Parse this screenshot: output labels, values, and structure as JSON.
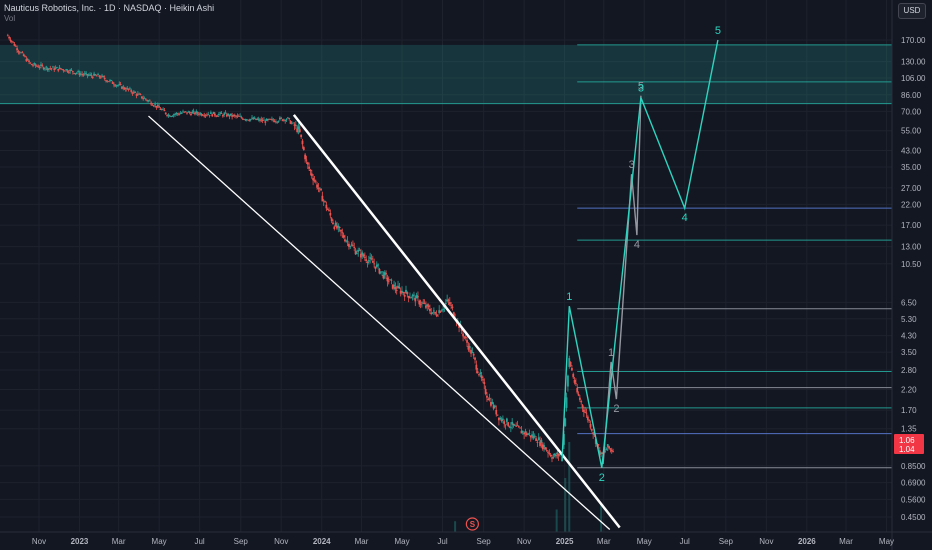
{
  "header": {
    "title": "Nauticus Robotics, Inc. · 1D · NASDAQ · Heikin Ashi",
    "volume_label": "Vol",
    "currency": "USD"
  },
  "chart_data": {
    "type": "line",
    "title": "Nauticus Robotics, Inc. · 1D · NASDAQ · Heikin Ashi",
    "y_scale": "log",
    "ylim": [
      0.4,
      230
    ],
    "y_ticks": [
      0.45,
      0.56,
      0.69,
      0.85,
      1.35,
      1.7,
      2.2,
      2.8,
      3.5,
      4.3,
      5.3,
      6.5,
      10.5,
      13.0,
      17.0,
      22.0,
      27.0,
      35.0,
      43.0,
      55.0,
      70.0,
      86.0,
      106.0,
      130.0,
      170.0
    ],
    "y_tick_labels": [
      "0.4500",
      "0.5600",
      "0.6900",
      "0.8500",
      "1.35",
      "1.70",
      "2.20",
      "2.80",
      "3.50",
      "4.30",
      "5.30",
      "6.50",
      "10.50",
      "13.00",
      "17.00",
      "22.00",
      "27.00",
      "35.00",
      "43.00",
      "55.00",
      "70.00",
      "86.00",
      "106.00",
      "130.00",
      "170.00"
    ],
    "x_ticks": [
      {
        "label": "Nov",
        "date": "2022-11-01"
      },
      {
        "label": "2023",
        "date": "2023-01-01"
      },
      {
        "label": "Mar",
        "date": "2023-03-01"
      },
      {
        "label": "May",
        "date": "2023-05-01"
      },
      {
        "label": "Jul",
        "date": "2023-07-01"
      },
      {
        "label": "Sep",
        "date": "2023-09-01"
      },
      {
        "label": "Nov",
        "date": "2023-11-01"
      },
      {
        "label": "2024",
        "date": "2024-01-01"
      },
      {
        "label": "Mar",
        "date": "2024-03-01"
      },
      {
        "label": "May",
        "date": "2024-05-01"
      },
      {
        "label": "Jul",
        "date": "2024-07-01"
      },
      {
        "label": "Sep",
        "date": "2024-09-01"
      },
      {
        "label": "Nov",
        "date": "2024-11-01"
      },
      {
        "label": "2025",
        "date": "2025-01-01"
      },
      {
        "label": "Mar",
        "date": "2025-03-01"
      },
      {
        "label": "May",
        "date": "2025-05-01"
      },
      {
        "label": "Jul",
        "date": "2025-07-01"
      },
      {
        "label": "Sep",
        "date": "2025-09-01"
      },
      {
        "label": "Nov",
        "date": "2025-11-01"
      },
      {
        "label": "2026",
        "date": "2026-01-01"
      },
      {
        "label": "Mar",
        "date": "2026-03-01"
      },
      {
        "label": "May",
        "date": "2026-05-01"
      }
    ],
    "price_series": {
      "name": "Price",
      "x": [
        "2022-09-15",
        "2022-10-01",
        "2022-10-20",
        "2022-11-15",
        "2022-12-10",
        "2023-01-10",
        "2023-02-01",
        "2023-02-25",
        "2023-03-20",
        "2023-04-20",
        "2023-05-15",
        "2023-06-10",
        "2023-07-10",
        "2023-08-10",
        "2023-09-10",
        "2023-10-10",
        "2023-11-10",
        "2023-11-28",
        "2023-12-10",
        "2023-12-25",
        "2024-01-20",
        "2024-02-20",
        "2024-03-20",
        "2024-04-20",
        "2024-05-20",
        "2024-06-20",
        "2024-07-10",
        "2024-07-25",
        "2024-08-15",
        "2024-09-05",
        "2024-09-25",
        "2024-10-20",
        "2024-11-20",
        "2024-12-15",
        "2024-12-29",
        "2025-01-08",
        "2025-01-20",
        "2025-02-10",
        "2025-02-25",
        "2025-03-06",
        "2025-03-15"
      ],
      "y": [
        180,
        150,
        125,
        120,
        118,
        110,
        108,
        98,
        90,
        78,
        67,
        69,
        68,
        67,
        64,
        62,
        64,
        55,
        36,
        28,
        17,
        12.5,
        10.5,
        7.8,
        6.9,
        5.6,
        6.6,
        5.0,
        3.4,
        2.1,
        1.55,
        1.35,
        1.2,
        0.95,
        1.0,
        3.2,
        2.1,
        1.4,
        0.96,
        1.06,
        1.04
      ]
    },
    "last_price_labels": [
      "1.06",
      "1.04"
    ],
    "supply_zone": {
      "low": 77,
      "high": 160
    },
    "horizontal_levels": [
      {
        "price": 160,
        "color": "#26a69a"
      },
      {
        "price": 101,
        "color": "#26a69a"
      },
      {
        "price": 77,
        "color": "#26a69a"
      },
      {
        "price": 21,
        "color": "#5b7bd5"
      },
      {
        "price": 14.1,
        "color": "#26a69a"
      },
      {
        "price": 6.0,
        "color": "#9598a1"
      },
      {
        "price": 2.75,
        "color": "#26a69a"
      },
      {
        "price": 2.25,
        "color": "#9598a1"
      },
      {
        "price": 1.75,
        "color": "#26a69a"
      },
      {
        "price": 1.27,
        "color": "#5b7bd5"
      },
      {
        "price": 0.83,
        "color": "#9598a1"
      }
    ],
    "channel_lines": [
      {
        "name": "upper",
        "points": [
          {
            "x": "2023-11-20",
            "y": 67
          },
          {
            "x": "2025-03-25",
            "y": 0.395
          }
        ],
        "color": "#ffffff",
        "width": "thick"
      },
      {
        "name": "lower",
        "points": [
          {
            "x": "2023-04-15",
            "y": 66
          },
          {
            "x": "2025-03-10",
            "y": 0.385
          }
        ],
        "color": "#ffffff",
        "width": "thin"
      }
    ],
    "wave_counts": [
      {
        "name": "teal",
        "color": "#2dd4bf",
        "points": [
          {
            "x": "2024-12-28",
            "y": 0.9
          },
          {
            "x": "2025-01-08",
            "y": 6.2,
            "label": "1"
          },
          {
            "x": "2025-02-26",
            "y": 0.83,
            "label": "2"
          },
          {
            "x": "2025-04-26",
            "y": 83,
            "label": "3"
          },
          {
            "x": "2025-07-01",
            "y": 21,
            "label": "4"
          },
          {
            "x": "2025-08-20",
            "y": 170,
            "label": "5"
          }
        ]
      },
      {
        "name": "grey",
        "color": "#9598a1",
        "points": [
          {
            "x": "2025-02-28",
            "y": 0.87
          },
          {
            "x": "2025-03-12",
            "y": 3.1,
            "label": "1"
          },
          {
            "x": "2025-03-20",
            "y": 1.95,
            "label": "2"
          },
          {
            "x": "2025-04-12",
            "y": 32,
            "label": "3"
          },
          {
            "x": "2025-04-20",
            "y": 15,
            "label": "4"
          },
          {
            "x": "2025-04-26",
            "y": 85,
            "label": "5"
          }
        ]
      }
    ],
    "volume_spikes": [
      {
        "x": "2025-01-08",
        "v": 1.0
      },
      {
        "x": "2025-01-02",
        "v": 0.6
      },
      {
        "x": "2024-12-20",
        "v": 0.25
      },
      {
        "x": "2025-02-25",
        "v": 0.3
      },
      {
        "x": "2024-07-20",
        "v": 0.12
      }
    ],
    "event_marker": {
      "x": "2024-08-15",
      "label": "S"
    }
  }
}
